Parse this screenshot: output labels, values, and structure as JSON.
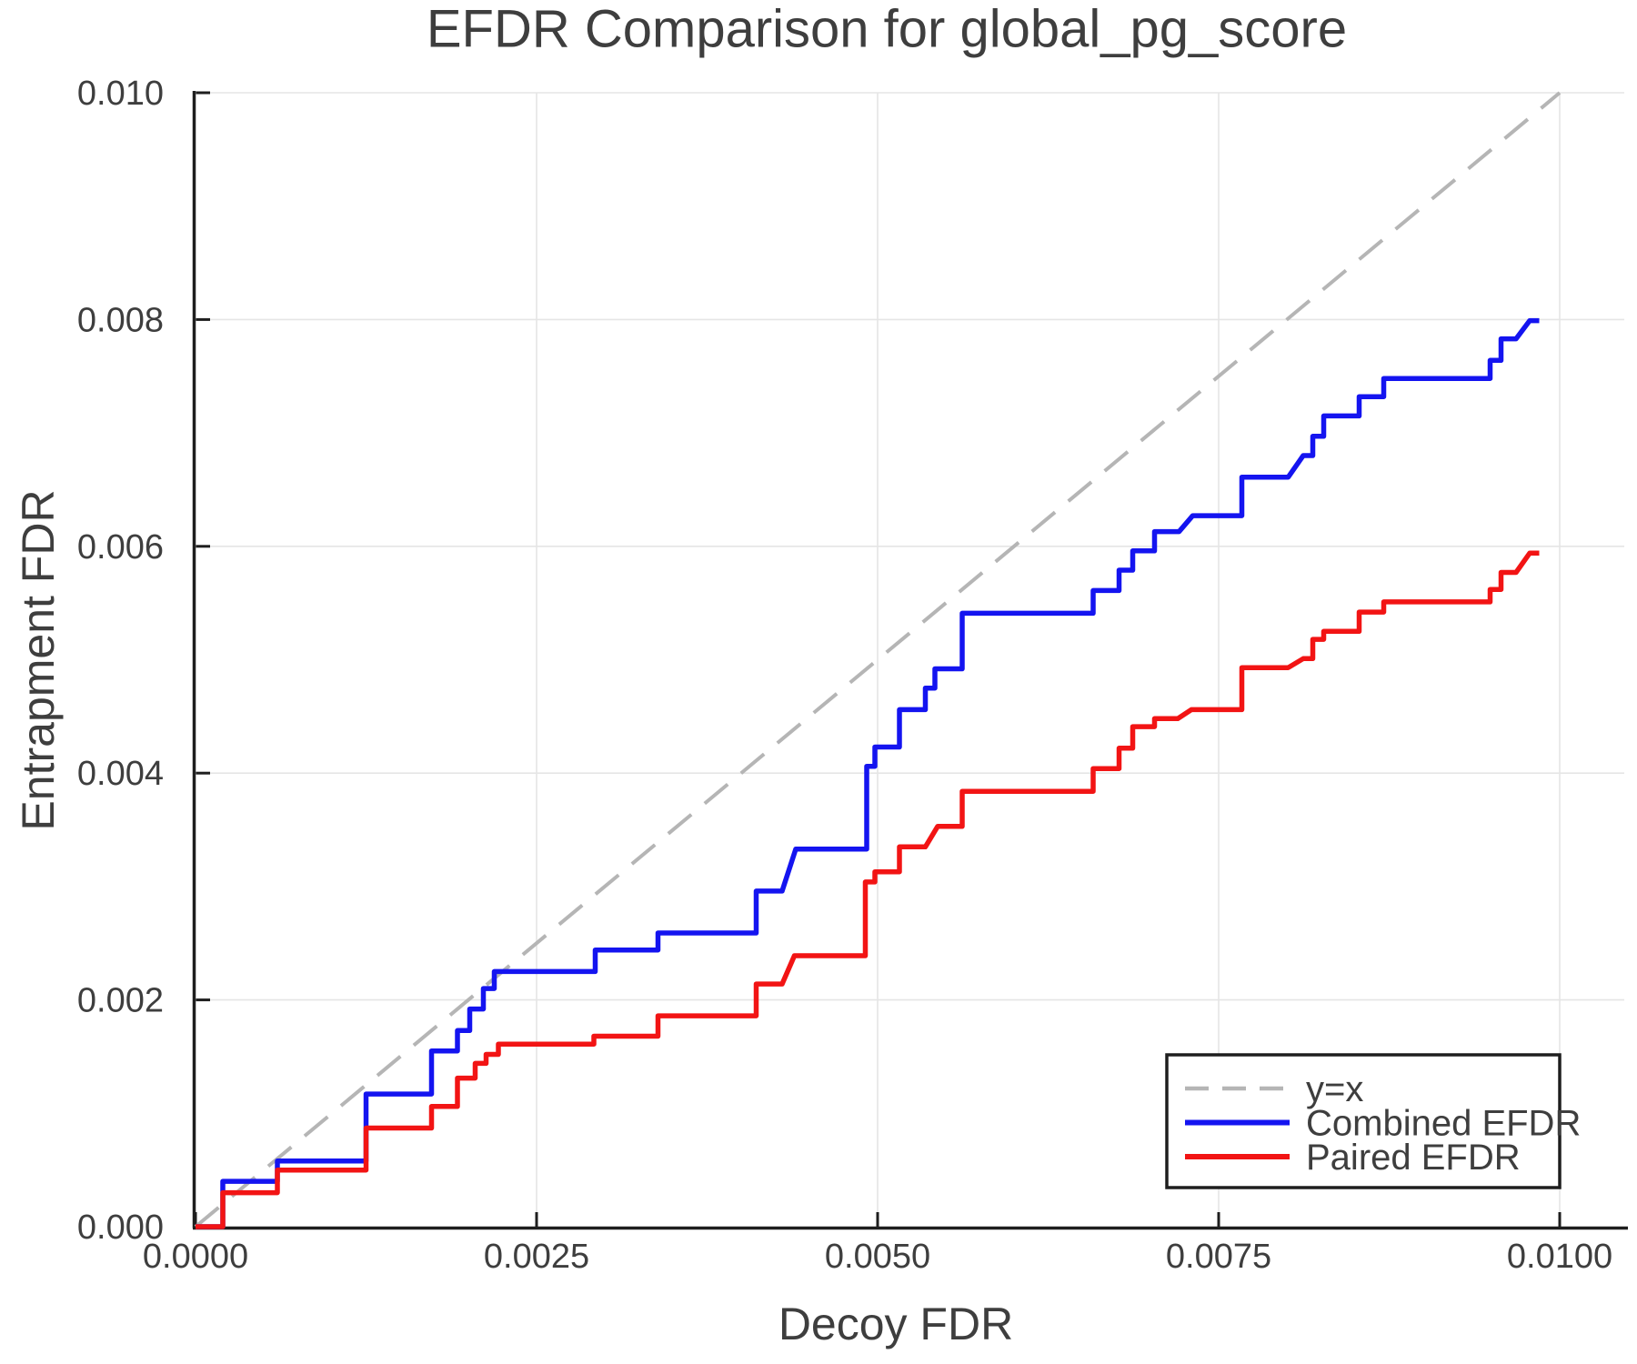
{
  "figure": {
    "background": "#ffffff",
    "text_color": "#3e3e3e",
    "axis_color": "#1e1e1e",
    "grid_color": "#e5e5e5",
    "legend_border_color": "#1e1e1e"
  },
  "chart_data": {
    "type": "line",
    "title": "EFDR Comparison for global_pg_score",
    "xlabel": "Decoy FDR",
    "ylabel": "Entrapment FDR",
    "xlim": [
      0.0,
      0.01
    ],
    "ylim": [
      0.0,
      0.01
    ],
    "grid": true,
    "legend_position": "lower right",
    "x_ticks": [
      0.0,
      0.0025,
      0.005,
      0.0075,
      0.01
    ],
    "x_tick_labels": [
      "0.0000",
      "0.0025",
      "0.0050",
      "0.0075",
      "0.0100"
    ],
    "y_ticks": [
      0.0,
      0.002,
      0.004,
      0.006,
      0.008,
      0.01
    ],
    "y_tick_labels": [
      "0.000",
      "0.002",
      "0.004",
      "0.006",
      "0.008",
      "0.010"
    ],
    "series": [
      {
        "name": "y=x",
        "style": "dashed",
        "color": "#b5b5b5",
        "width": 4,
        "points": [
          [
            0,
            0
          ],
          [
            0.01,
            0.01
          ]
        ]
      },
      {
        "name": "Combined EFDR",
        "style": "solid",
        "color": "#1414f0",
        "width": 5.5,
        "points": [
          [
            0,
            0
          ],
          [
            0.0002,
            0
          ],
          [
            0.0002,
            0.0004
          ],
          [
            0.0006,
            0.0004
          ],
          [
            0.0006,
            0.00058
          ],
          [
            0.00125,
            0.00058
          ],
          [
            0.00125,
            0.00117
          ],
          [
            0.00173,
            0.00117
          ],
          [
            0.00173,
            0.00155
          ],
          [
            0.00192,
            0.00155
          ],
          [
            0.00192,
            0.00173
          ],
          [
            0.00201,
            0.00173
          ],
          [
            0.00201,
            0.00192
          ],
          [
            0.00211,
            0.00192
          ],
          [
            0.00211,
            0.0021
          ],
          [
            0.00219,
            0.0021
          ],
          [
            0.00219,
            0.00225
          ],
          [
            0.00293,
            0.00225
          ],
          [
            0.00293,
            0.00244
          ],
          [
            0.00339,
            0.00244
          ],
          [
            0.00339,
            0.00259
          ],
          [
            0.00411,
            0.00259
          ],
          [
            0.00411,
            0.00296
          ],
          [
            0.0043,
            0.00296
          ],
          [
            0.0044,
            0.00333
          ],
          [
            0.00492,
            0.00333
          ],
          [
            0.00492,
            0.00406
          ],
          [
            0.00498,
            0.00406
          ],
          [
            0.00498,
            0.00423
          ],
          [
            0.00516,
            0.00423
          ],
          [
            0.00516,
            0.00456
          ],
          [
            0.00535,
            0.00456
          ],
          [
            0.00535,
            0.00475
          ],
          [
            0.00542,
            0.00475
          ],
          [
            0.00542,
            0.00492
          ],
          [
            0.00562,
            0.00492
          ],
          [
            0.00562,
            0.00541
          ],
          [
            0.00658,
            0.00541
          ],
          [
            0.00658,
            0.00561
          ],
          [
            0.00677,
            0.00561
          ],
          [
            0.00677,
            0.00579
          ],
          [
            0.00687,
            0.00579
          ],
          [
            0.00687,
            0.00596
          ],
          [
            0.00703,
            0.00596
          ],
          [
            0.00703,
            0.00613
          ],
          [
            0.00721,
            0.00613
          ],
          [
            0.00731,
            0.00627
          ],
          [
            0.00767,
            0.00627
          ],
          [
            0.00767,
            0.00661
          ],
          [
            0.00801,
            0.00661
          ],
          [
            0.00812,
            0.0068
          ],
          [
            0.00819,
            0.0068
          ],
          [
            0.00819,
            0.00697
          ],
          [
            0.00827,
            0.00697
          ],
          [
            0.00827,
            0.00715
          ],
          [
            0.00853,
            0.00715
          ],
          [
            0.00853,
            0.00732
          ],
          [
            0.00871,
            0.00732
          ],
          [
            0.00871,
            0.00748
          ],
          [
            0.00949,
            0.00748
          ],
          [
            0.00949,
            0.00764
          ],
          [
            0.00957,
            0.00764
          ],
          [
            0.00957,
            0.00783
          ],
          [
            0.00968,
            0.00783
          ],
          [
            0.00978,
            0.00799
          ],
          [
            0.00985,
            0.00799
          ]
        ]
      },
      {
        "name": "Paired EFDR",
        "style": "solid",
        "color": "#f21414",
        "width": 5.5,
        "points": [
          [
            0,
            0
          ],
          [
            0.0002,
            0
          ],
          [
            0.0002,
            0.0003
          ],
          [
            0.0006,
            0.0003
          ],
          [
            0.0006,
            0.0005
          ],
          [
            0.00125,
            0.0005
          ],
          [
            0.00125,
            0.00087
          ],
          [
            0.00173,
            0.00087
          ],
          [
            0.00173,
            0.00106
          ],
          [
            0.00192,
            0.00106
          ],
          [
            0.00192,
            0.00131
          ],
          [
            0.00205,
            0.00131
          ],
          [
            0.00205,
            0.00144
          ],
          [
            0.00213,
            0.00144
          ],
          [
            0.00213,
            0.00152
          ],
          [
            0.00222,
            0.00152
          ],
          [
            0.00222,
            0.00161
          ],
          [
            0.00292,
            0.00161
          ],
          [
            0.00292,
            0.00168
          ],
          [
            0.00339,
            0.00168
          ],
          [
            0.00339,
            0.00186
          ],
          [
            0.00411,
            0.00186
          ],
          [
            0.00411,
            0.00214
          ],
          [
            0.0043,
            0.00214
          ],
          [
            0.00439,
            0.00239
          ],
          [
            0.00491,
            0.00239
          ],
          [
            0.00491,
            0.00304
          ],
          [
            0.00498,
            0.00304
          ],
          [
            0.00498,
            0.00313
          ],
          [
            0.00516,
            0.00313
          ],
          [
            0.00516,
            0.00335
          ],
          [
            0.00535,
            0.00335
          ],
          [
            0.00544,
            0.00353
          ],
          [
            0.00562,
            0.00353
          ],
          [
            0.00562,
            0.00384
          ],
          [
            0.00658,
            0.00384
          ],
          [
            0.00658,
            0.00404
          ],
          [
            0.00677,
            0.00404
          ],
          [
            0.00677,
            0.00422
          ],
          [
            0.00687,
            0.00422
          ],
          [
            0.00687,
            0.00441
          ],
          [
            0.00703,
            0.00441
          ],
          [
            0.00703,
            0.00448
          ],
          [
            0.0072,
            0.00448
          ],
          [
            0.0073,
            0.00456
          ],
          [
            0.00767,
            0.00456
          ],
          [
            0.00767,
            0.00493
          ],
          [
            0.00801,
            0.00493
          ],
          [
            0.00812,
            0.00501
          ],
          [
            0.00819,
            0.00501
          ],
          [
            0.00819,
            0.00518
          ],
          [
            0.00827,
            0.00518
          ],
          [
            0.00827,
            0.00525
          ],
          [
            0.00853,
            0.00525
          ],
          [
            0.00853,
            0.00542
          ],
          [
            0.00871,
            0.00542
          ],
          [
            0.00871,
            0.00551
          ],
          [
            0.00949,
            0.00551
          ],
          [
            0.00949,
            0.00562
          ],
          [
            0.00957,
            0.00562
          ],
          [
            0.00957,
            0.00577
          ],
          [
            0.00968,
            0.00577
          ],
          [
            0.00978,
            0.00594
          ],
          [
            0.00985,
            0.00594
          ]
        ]
      }
    ]
  }
}
